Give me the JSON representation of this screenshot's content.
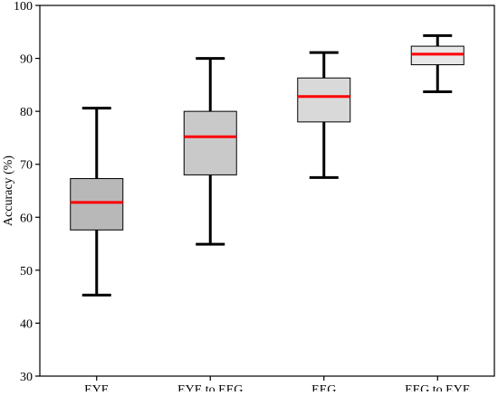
{
  "chart_data": {
    "type": "boxplot",
    "title": "",
    "xlabel": "",
    "ylabel": "Accuracy (%)",
    "ylim": [
      30,
      100
    ],
    "yticks": [
      30,
      40,
      50,
      60,
      70,
      80,
      90,
      100
    ],
    "grid": false,
    "legend": "none",
    "categories": [
      "EYE",
      "EYE to EEG",
      "EEG",
      "EEG to EYE"
    ],
    "boxes": [
      {
        "label": "EYE",
        "whisker_low": 45.3,
        "q1": 57.6,
        "median": 62.8,
        "q3": 67.3,
        "whisker_high": 80.6,
        "fill": "#b8b8b8"
      },
      {
        "label": "EYE to EEG",
        "whisker_low": 54.9,
        "q1": 68.0,
        "median": 75.2,
        "q3": 80.0,
        "whisker_high": 90.0,
        "fill": "#c9c9c9"
      },
      {
        "label": "EEG",
        "whisker_low": 67.5,
        "q1": 78.0,
        "median": 82.8,
        "q3": 86.3,
        "whisker_high": 91.1,
        "fill": "#d9d9d9"
      },
      {
        "label": "EEG to EYE",
        "whisker_low": 83.7,
        "q1": 88.8,
        "median": 90.8,
        "q3": 92.3,
        "whisker_high": 94.3,
        "fill": "#e8e8e8"
      }
    ],
    "colors": {
      "median": "#ff0000",
      "whisker": "#000000",
      "box_edge": "#000000",
      "axes": "#000000"
    }
  }
}
